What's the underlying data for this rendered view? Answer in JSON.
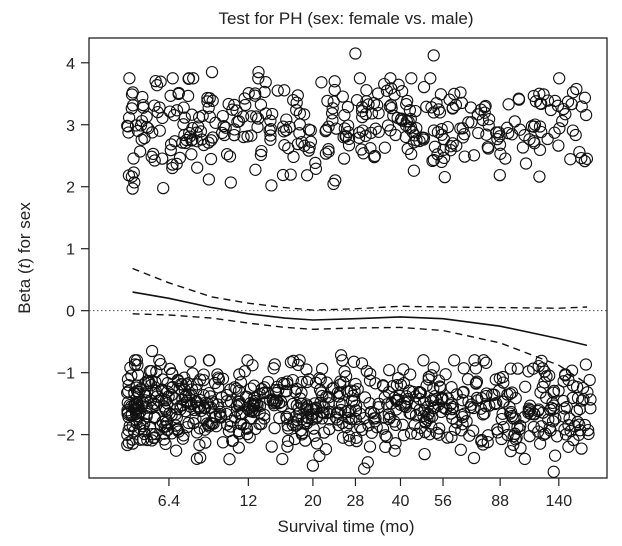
{
  "chart_data": {
    "type": "scatter",
    "title": "Test for PH (sex: female vs. male)",
    "xlabel": "Survival time (mo)",
    "ylabel_prefix": "Beta (",
    "ylabel_var": "t",
    "ylabel_suffix": ") for sex",
    "x_scale": "log",
    "x_ticks": [
      6.4,
      12,
      20,
      28,
      40,
      56,
      88,
      140
    ],
    "x_tick_labels": [
      "6.4",
      "12",
      "20",
      "28",
      "40",
      "56",
      "88",
      "140"
    ],
    "xlim": [
      3.4,
      205
    ],
    "y_ticks": [
      -2,
      -1,
      0,
      1,
      2,
      3,
      4
    ],
    "y_tick_labels": [
      "−2",
      "−1",
      "0",
      "1",
      "2",
      "3",
      "4"
    ],
    "ylim": [
      -2.7,
      4.4
    ],
    "reference_line_y": 0,
    "smooth_fit": {
      "x": [
        4.8,
        6.4,
        9,
        12,
        16,
        20,
        28,
        40,
        56,
        88,
        140,
        175
      ],
      "y": [
        0.3,
        0.2,
        0.05,
        -0.05,
        -0.12,
        -0.15,
        -0.13,
        -0.1,
        -0.13,
        -0.25,
        -0.45,
        -0.56
      ]
    },
    "confidence_upper": {
      "x": [
        4.8,
        6.4,
        9,
        12,
        16,
        20,
        28,
        40,
        56,
        88,
        140,
        175
      ],
      "y": [
        0.68,
        0.45,
        0.22,
        0.12,
        0.05,
        0.01,
        0.03,
        0.07,
        0.06,
        0.05,
        0.04,
        0.06
      ]
    },
    "confidence_lower": {
      "x": [
        4.8,
        6.4,
        9,
        12,
        16,
        20,
        28,
        40,
        56,
        88,
        140,
        175
      ],
      "y": [
        -0.05,
        -0.07,
        -0.12,
        -0.2,
        -0.27,
        -0.3,
        -0.28,
        -0.27,
        -0.32,
        -0.52,
        -0.88,
        -1.18
      ]
    },
    "point_clusters": [
      {
        "name": "upper",
        "x_min": 4.6,
        "x_max": 175,
        "y_center": 3.0,
        "y_spread": 0.38,
        "count": 380,
        "extra_points": [
          [
            28,
            4.15
          ],
          [
            52,
            4.12
          ],
          [
            4.8,
            1.97
          ],
          [
            13,
            3.85
          ],
          [
            9,
            3.85
          ],
          [
            7.5,
            3.75
          ],
          [
            120,
            3.5
          ],
          [
            102,
            3.42
          ]
        ]
      },
      {
        "name": "lower",
        "x_min": 4.6,
        "x_max": 180,
        "y_center": -1.55,
        "y_spread": 0.35,
        "count": 760,
        "extra_points": [
          [
            5.6,
            -0.65
          ],
          [
            18,
            -0.8
          ],
          [
            25,
            -0.72
          ],
          [
            29.5,
            -0.85
          ],
          [
            52,
            -0.92
          ],
          [
            66,
            -0.93
          ],
          [
            12.4,
            -0.88
          ],
          [
            30,
            -2.55
          ],
          [
            20,
            -2.5
          ]
        ]
      }
    ]
  }
}
